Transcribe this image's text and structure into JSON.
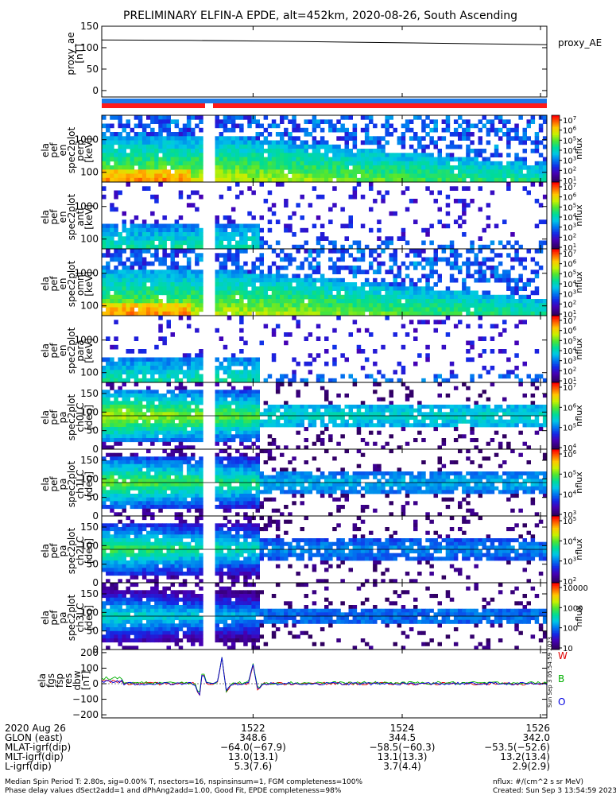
{
  "title": "PRELIMINARY ELFIN-A EPDE, alt=452km, 2020-08-26, South Ascending",
  "chart_data": [
    {
      "type": "line",
      "ylabel_lines": [
        "proxy_ae",
        "[nT]"
      ],
      "ylim": [
        -15,
        150
      ],
      "yticks": [
        "150",
        "100",
        "50",
        "0"
      ],
      "ytick_values": [
        150,
        100,
        50,
        0
      ],
      "legend": "proxy_AE",
      "series": [
        {
          "name": "proxy_AE",
          "x": [
            0,
            0.2,
            0.4,
            0.55,
            0.7,
            0.85,
            1.0
          ],
          "values": [
            118,
            117,
            115,
            113,
            111,
            109,
            107
          ]
        }
      ]
    },
    {
      "type": "heatmap",
      "ylabel_lines": [
        "ela",
        "pef",
        "en",
        "spec2plot",
        "perp",
        "[keV]"
      ],
      "yticks": [
        "1000",
        "100"
      ],
      "ytick_values": [
        1000,
        100
      ],
      "yscale": "log",
      "colorbar": {
        "label": "nflux",
        "ticks": [
          "10^7",
          "10^6",
          "10^5",
          "10^4",
          "10^3",
          "10^2",
          "10^1"
        ]
      }
    },
    {
      "type": "heatmap",
      "ylabel_lines": [
        "ela",
        "pef",
        "en",
        "spec2plot",
        "anti",
        "[keV]"
      ],
      "yticks": [
        "1000",
        "100"
      ],
      "ytick_values": [
        1000,
        100
      ],
      "yscale": "log",
      "colorbar": {
        "label": "nflux",
        "ticks": [
          "10^7",
          "10^6",
          "10^5",
          "10^4",
          "10^3",
          "10^2",
          "10^1"
        ]
      }
    },
    {
      "type": "heatmap",
      "ylabel_lines": [
        "ela",
        "pef",
        "en",
        "spec2plot",
        "omni",
        "[keV]"
      ],
      "yticks": [
        "1000",
        "100"
      ],
      "ytick_values": [
        1000,
        100
      ],
      "yscale": "log",
      "colorbar": {
        "label": "nflux",
        "ticks": [
          "10^7",
          "10^6",
          "10^5",
          "10^4",
          "10^3",
          "10^2",
          "10^1"
        ]
      }
    },
    {
      "type": "heatmap",
      "ylabel_lines": [
        "ela",
        "pef",
        "en",
        "spec2plot",
        "para",
        "[keV]"
      ],
      "yticks": [
        "1000",
        "100"
      ],
      "ytick_values": [
        1000,
        100
      ],
      "yscale": "log",
      "colorbar": {
        "label": "nflux",
        "ticks": [
          "10^7",
          "10^6",
          "10^5",
          "10^4",
          "10^3",
          "10^2",
          "10^1"
        ]
      }
    },
    {
      "type": "heatmap",
      "ylabel_lines": [
        "ela",
        "pef",
        "pa",
        "spec2plot",
        "ch0LC",
        "[deg]"
      ],
      "yticks": [
        "150",
        "100",
        "50",
        "0"
      ],
      "ytick_values": [
        150,
        100,
        50,
        0
      ],
      "ylim": [
        0,
        180
      ],
      "colorbar": {
        "label": "nflux",
        "ticks": [
          "10^7",
          "10^6",
          "10^5",
          "10^4"
        ]
      }
    },
    {
      "type": "heatmap",
      "ylabel_lines": [
        "ela",
        "pef",
        "pa",
        "spec2plot",
        "ch1LC",
        "[deg]"
      ],
      "yticks": [
        "150",
        "100",
        "50",
        "0"
      ],
      "ytick_values": [
        150,
        100,
        50,
        0
      ],
      "ylim": [
        0,
        180
      ],
      "colorbar": {
        "label": "nflux",
        "ticks": [
          "10^6",
          "10^5",
          "10^4",
          "10^3"
        ]
      }
    },
    {
      "type": "heatmap",
      "ylabel_lines": [
        "ela",
        "pef",
        "pa",
        "spec2plot",
        "ch2LC",
        "[deg]"
      ],
      "yticks": [
        "150",
        "100",
        "50",
        "0"
      ],
      "ytick_values": [
        150,
        100,
        50,
        0
      ],
      "ylim": [
        0,
        180
      ],
      "colorbar": {
        "label": "nflux",
        "ticks": [
          "10^5",
          "10^4",
          "10^3",
          "10^2"
        ]
      }
    },
    {
      "type": "heatmap",
      "ylabel_lines": [
        "ela",
        "pef",
        "pa",
        "spec2plot",
        "ch3LC",
        "[deg]"
      ],
      "yticks": [
        "150",
        "100",
        "50",
        "0"
      ],
      "ytick_values": [
        150,
        100,
        50,
        0
      ],
      "ylim": [
        0,
        180
      ],
      "colorbar": {
        "label": "nflux",
        "ticks": [
          "10000",
          "1000",
          "100",
          "10"
        ]
      }
    },
    {
      "type": "line",
      "ylabel_lines": [
        "ela",
        "fgs",
        "fsp",
        "res",
        "dbw",
        "[nT]"
      ],
      "yticks": [
        "200",
        "100",
        "0",
        "−100",
        "−200"
      ],
      "ytick_values": [
        200,
        100,
        0,
        -100,
        -200
      ],
      "ylim": [
        -220,
        220
      ],
      "legend_letters": [
        "W",
        "B",
        "O"
      ],
      "legend_colors": [
        "#e00000",
        "#00b000",
        "#0000e0"
      ]
    }
  ],
  "colors": {
    "red": "#ff1a1a",
    "blue": "#1e78e6",
    "white": "#ffffff"
  },
  "xaxis": {
    "row_labels": [
      "2020 Aug 26",
      "GLON (east)",
      "MLAT-igrf(dip)",
      "MLT-igrf(dip)",
      "L-igrf(dip)"
    ],
    "ticks": [
      {
        "time": "1522",
        "values": [
          "348.6",
          "−64.0(−67.9)",
          "13.0(13.1)",
          "5.3(7.6)"
        ]
      },
      {
        "time": "1524",
        "values": [
          "344.5",
          "−58.5(−60.3)",
          "13.1(13.3)",
          "3.7(4.4)"
        ]
      },
      {
        "time": "1526",
        "values": [
          "342.0",
          "−53.5(−52.6)",
          "13.2(13.4)",
          "2.9(2.9)"
        ]
      }
    ]
  },
  "footer": {
    "line1": "Median Spin Period T: 2.80s, sig=0.00% T, nsectors=16, nspinsinsum=1, FGM completeness=100%",
    "line2": "Phase delay values dSect2add=1 and dPhAng2add=1.00, Good Fit, EPDE completeness=98%",
    "right1": "nflux: #/(cm^2 s sr MeV)",
    "right2": "Created: Sun Sep  3 13:54:59 2023",
    "vertical": "Sun Sep  3 05:54:59 2023"
  }
}
